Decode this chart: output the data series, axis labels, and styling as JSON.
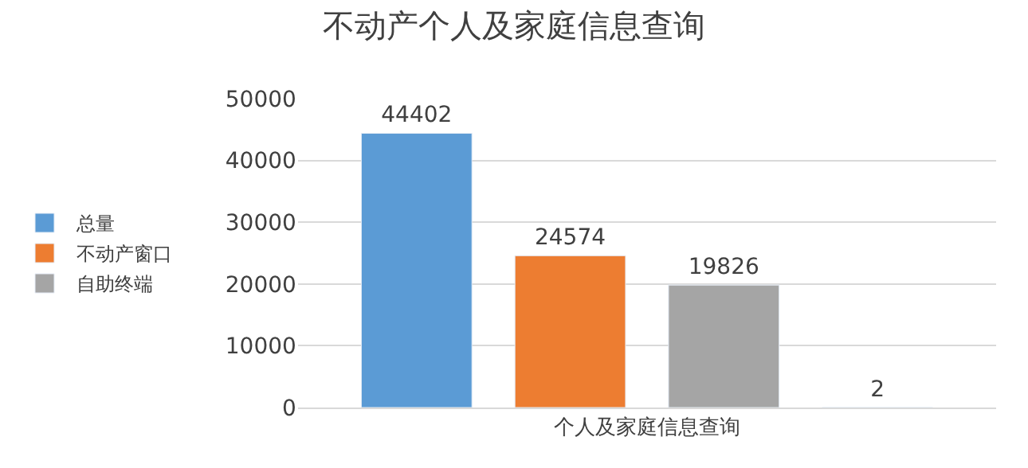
{
  "chart_data": {
    "type": "bar",
    "title": "不动产个人及家庭信息查询",
    "categories": [
      "个人及家庭信息查询"
    ],
    "series": [
      {
        "name": "总量",
        "color": "#5b9bd5",
        "values": [
          44402
        ]
      },
      {
        "name": "不动产窗口",
        "color": "#ed7d31",
        "values": [
          24574
        ]
      },
      {
        "name": "自助终端",
        "color": "#a5a5a5",
        "values": [
          19826
        ]
      },
      {
        "color": "#ffc000",
        "values": [
          2
        ]
      }
    ],
    "ylim": [
      0,
      50000
    ],
    "yticks": [
      0,
      10000,
      20000,
      30000,
      40000,
      50000
    ],
    "grid": "y",
    "legend": "left",
    "data_labels": true
  }
}
